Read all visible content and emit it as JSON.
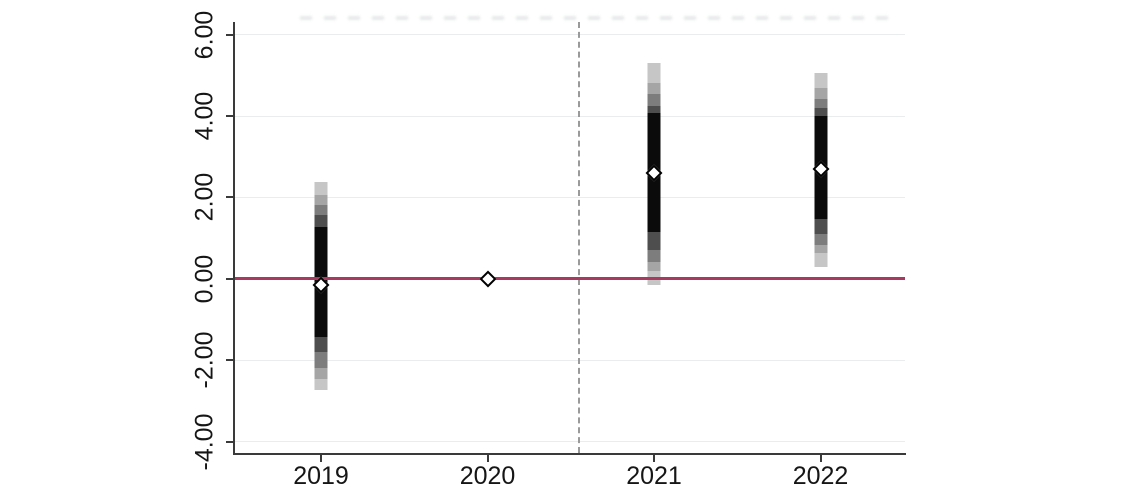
{
  "chart_data": {
    "type": "scatter",
    "subtype": "coefficient-plot-with-gradient-confidence-intervals",
    "title": "",
    "xlabel": "",
    "ylabel": "",
    "x_categories": [
      "2019",
      "2020",
      "2021",
      "2022"
    ],
    "y_ticks": [
      {
        "value": 6,
        "label": "6.00"
      },
      {
        "value": 4,
        "label": "4.00"
      },
      {
        "value": 2,
        "label": "2.00"
      },
      {
        "value": 0,
        "label": "0.00"
      },
      {
        "value": -2,
        "label": "-2.00"
      },
      {
        "value": -4,
        "label": "-4.00"
      }
    ],
    "ylim": [
      -4.28,
      6.31
    ],
    "grid_values": [
      6,
      4,
      2,
      -2,
      -4
    ],
    "grid_color": "#e9edee",
    "axis_color": "#3a3a3a",
    "zero_line": {
      "value": 0,
      "color": "#a8395f"
    },
    "reference_line": {
      "between": [
        "2020",
        "2021"
      ],
      "x_index_position": 1.55,
      "style": "dashed",
      "color": "#9a9a9a"
    },
    "band_colors": [
      "#c6c6c6",
      "#a5a5a5",
      "#7d7d7d",
      "#4e4e4e",
      "#0b0b0b"
    ],
    "marker": {
      "shape": "diamond",
      "fill": "#ffffff",
      "stroke": "#000000"
    },
    "points": [
      {
        "x": "2019",
        "estimate": -0.15,
        "bands": [
          {
            "lo": -2.73,
            "hi": 2.39
          },
          {
            "lo": -2.45,
            "hi": 2.06
          },
          {
            "lo": -2.19,
            "hi": 1.82
          },
          {
            "lo": -1.79,
            "hi": 1.57
          },
          {
            "lo": -1.42,
            "hi": 1.28
          }
        ]
      },
      {
        "x": "2020",
        "estimate": 0.0,
        "bands": []
      },
      {
        "x": "2021",
        "estimate": 2.6,
        "bands": [
          {
            "lo": -0.15,
            "hi": 5.3
          },
          {
            "lo": 0.18,
            "hi": 4.81
          },
          {
            "lo": 0.42,
            "hi": 4.53
          },
          {
            "lo": 0.71,
            "hi": 4.25
          },
          {
            "lo": 1.15,
            "hi": 4.08
          }
        ]
      },
      {
        "x": "2022",
        "estimate": 2.7,
        "bands": [
          {
            "lo": 0.3,
            "hi": 5.06
          },
          {
            "lo": 0.63,
            "hi": 4.69
          },
          {
            "lo": 0.83,
            "hi": 4.41
          },
          {
            "lo": 1.11,
            "hi": 4.2
          },
          {
            "lo": 1.48,
            "hi": 4.0
          }
        ]
      }
    ]
  }
}
